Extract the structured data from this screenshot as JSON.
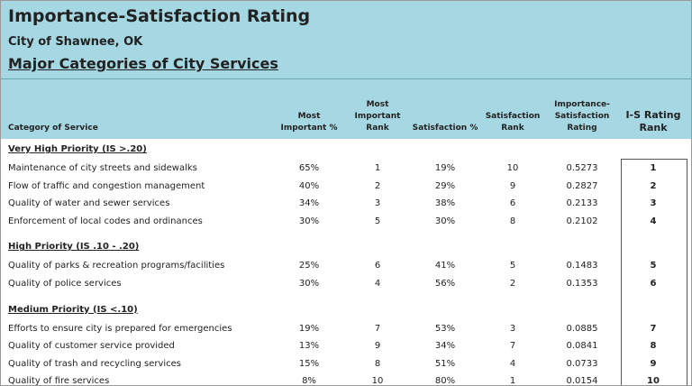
{
  "header": {
    "title": "Importance-Satisfaction Rating",
    "subtitle": "City of Shawnee, OK",
    "heading": "Major Categories of City Services"
  },
  "table": {
    "columns": [
      [
        "Category of Service"
      ],
      [
        "Most",
        "Important %"
      ],
      [
        "Most",
        "Important",
        "Rank"
      ],
      [
        "Satisfaction %"
      ],
      [
        "Satisfaction",
        "Rank"
      ],
      [
        "Importance-",
        "Satisfaction",
        "Rating"
      ],
      [
        "I-S Rating",
        "Rank"
      ]
    ],
    "groups": [
      {
        "label": "Very High Priority (IS >.20)",
        "rows": [
          [
            "Maintenance of city streets and sidewalks",
            "65%",
            "1",
            "19%",
            "10",
            "0.5273",
            "1"
          ],
          [
            "Flow of traffic and congestion management",
            "40%",
            "2",
            "29%",
            "9",
            "0.2827",
            "2"
          ],
          [
            "Quality of water and sewer services",
            "34%",
            "3",
            "38%",
            "6",
            "0.2133",
            "3"
          ],
          [
            "Enforcement of local codes and ordinances",
            "30%",
            "5",
            "30%",
            "8",
            "0.2102",
            "4"
          ]
        ]
      },
      {
        "label": "High Priority (IS .10 - .20)",
        "rows": [
          [
            "Quality of parks & recreation programs/facilities",
            "25%",
            "6",
            "41%",
            "5",
            "0.1483",
            "5"
          ],
          [
            "Quality of police services",
            "30%",
            "4",
            "56%",
            "2",
            "0.1353",
            "6"
          ]
        ]
      },
      {
        "label": "Medium Priority (IS <.10)",
        "rows": [
          [
            "Efforts to ensure city is prepared for emergencies",
            "19%",
            "7",
            "53%",
            "3",
            "0.0885",
            "7"
          ],
          [
            "Quality of customer service provided",
            "13%",
            "9",
            "34%",
            "7",
            "0.0841",
            "8"
          ],
          [
            "Quality of trash and recycling services",
            "15%",
            "8",
            "51%",
            "4",
            "0.0733",
            "9"
          ],
          [
            "Quality of fire services",
            "8%",
            "10",
            "80%",
            "1",
            "0.0154",
            "10"
          ]
        ]
      }
    ]
  }
}
